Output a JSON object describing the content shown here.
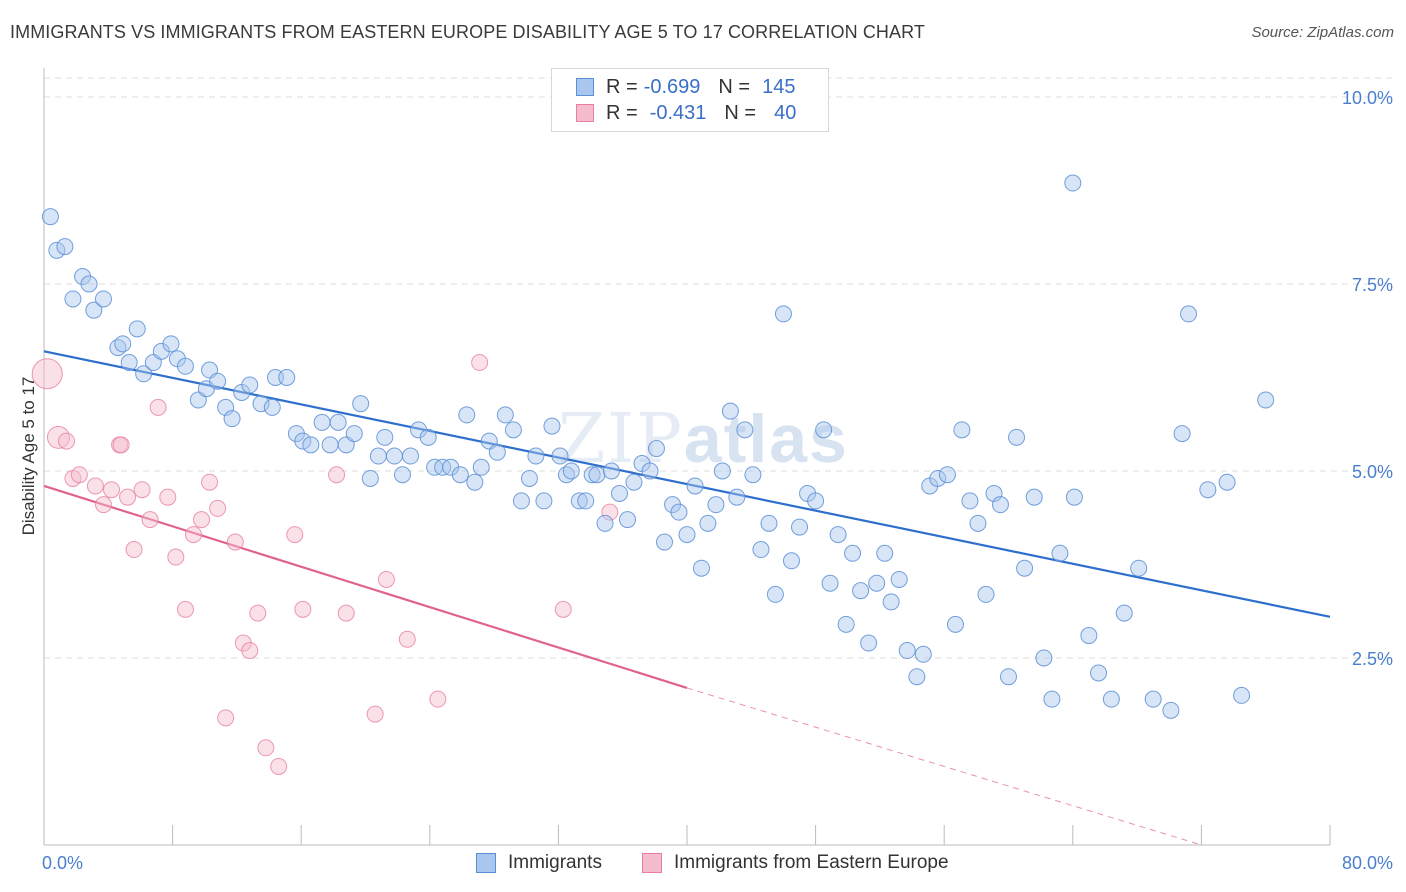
{
  "title": "IMMIGRANTS VS IMMIGRANTS FROM EASTERN EUROPE DISABILITY AGE 5 TO 17 CORRELATION CHART",
  "source": "Source: ZipAtlas.com",
  "watermark": {
    "part1": "ZIP",
    "part2": "atlas"
  },
  "colors": {
    "blue": "#5b8fd6",
    "blue_fill": "#a9c6ee",
    "blue_line": "#2f6fcc",
    "pink": "#e87fa0",
    "pink_fill": "#f5bccd",
    "pink_line": "#e0638e",
    "axis_text": "#4a7fcf",
    "grid": "#dddddd"
  },
  "legend_top": {
    "rows": [
      {
        "r_label": "R =",
        "r_value": "-0.699",
        "n_label": "N =",
        "n_value": "145"
      },
      {
        "r_label": "R =",
        "r_value": "-0.431",
        "n_label": "N =",
        "n_value": "40"
      }
    ]
  },
  "legend_bottom": {
    "series1": "Immigrants",
    "series2": "Immigrants from Eastern Europe"
  },
  "chart_data": {
    "type": "scatter",
    "xlabel": "",
    "ylabel": "Disability Age 5 to 17",
    "xlim": [
      0,
      80
    ],
    "ylim": [
      0,
      10.5
    ],
    "x_tick_labels": [
      "0.0%",
      "80.0%"
    ],
    "y_ticks": [
      2.5,
      5.0,
      7.5,
      10.0
    ],
    "y_tick_labels": [
      "2.5%",
      "5.0%",
      "7.5%",
      "10.0%"
    ],
    "grid": true,
    "series": [
      {
        "name": "Immigrants",
        "trend": {
          "x": [
            0,
            80
          ],
          "y": [
            6.6,
            3.05
          ]
        },
        "points": [
          [
            0.4,
            8.4
          ],
          [
            0.8,
            7.95
          ],
          [
            1.3,
            8.0
          ],
          [
            2.4,
            7.6
          ],
          [
            2.8,
            7.5
          ],
          [
            1.8,
            7.3
          ],
          [
            3.1,
            7.15
          ],
          [
            3.7,
            7.3
          ],
          [
            4.6,
            6.65
          ],
          [
            4.9,
            6.7
          ],
          [
            5.8,
            6.9
          ],
          [
            5.3,
            6.45
          ],
          [
            6.2,
            6.3
          ],
          [
            6.8,
            6.45
          ],
          [
            7.3,
            6.6
          ],
          [
            7.9,
            6.7
          ],
          [
            8.3,
            6.5
          ],
          [
            8.8,
            6.4
          ],
          [
            9.6,
            5.95
          ],
          [
            10.1,
            6.1
          ],
          [
            10.3,
            6.35
          ],
          [
            10.8,
            6.2
          ],
          [
            11.3,
            5.85
          ],
          [
            11.7,
            5.7
          ],
          [
            12.3,
            6.05
          ],
          [
            12.8,
            6.15
          ],
          [
            13.5,
            5.9
          ],
          [
            14.2,
            5.85
          ],
          [
            14.4,
            6.25
          ],
          [
            15.1,
            6.25
          ],
          [
            15.7,
            5.5
          ],
          [
            16.1,
            5.4
          ],
          [
            16.6,
            5.35
          ],
          [
            17.3,
            5.65
          ],
          [
            17.8,
            5.35
          ],
          [
            18.3,
            5.65
          ],
          [
            18.8,
            5.35
          ],
          [
            19.3,
            5.5
          ],
          [
            19.7,
            5.9
          ],
          [
            20.3,
            4.9
          ],
          [
            20.8,
            5.2
          ],
          [
            21.2,
            5.45
          ],
          [
            21.8,
            5.2
          ],
          [
            22.3,
            4.95
          ],
          [
            22.8,
            5.2
          ],
          [
            23.3,
            5.55
          ],
          [
            23.9,
            5.45
          ],
          [
            24.3,
            5.05
          ],
          [
            24.8,
            5.05
          ],
          [
            25.3,
            5.05
          ],
          [
            25.9,
            4.95
          ],
          [
            26.3,
            5.75
          ],
          [
            26.8,
            4.85
          ],
          [
            27.2,
            5.05
          ],
          [
            27.7,
            5.4
          ],
          [
            28.2,
            5.25
          ],
          [
            28.7,
            5.75
          ],
          [
            29.2,
            5.55
          ],
          [
            29.7,
            4.6
          ],
          [
            30.2,
            4.9
          ],
          [
            30.6,
            5.2
          ],
          [
            31.1,
            4.6
          ],
          [
            31.6,
            5.6
          ],
          [
            32.1,
            5.2
          ],
          [
            32.5,
            4.95
          ],
          [
            32.8,
            5.0
          ],
          [
            33.3,
            4.6
          ],
          [
            33.7,
            4.6
          ],
          [
            34.1,
            4.95
          ],
          [
            34.4,
            4.95
          ],
          [
            34.9,
            4.3
          ],
          [
            35.3,
            5.0
          ],
          [
            35.8,
            4.7
          ],
          [
            36.3,
            4.35
          ],
          [
            36.7,
            4.85
          ],
          [
            37.2,
            5.1
          ],
          [
            37.7,
            5.0
          ],
          [
            38.1,
            5.3
          ],
          [
            38.6,
            4.05
          ],
          [
            39.1,
            4.55
          ],
          [
            39.5,
            4.45
          ],
          [
            40.0,
            4.15
          ],
          [
            40.5,
            4.8
          ],
          [
            40.9,
            3.7
          ],
          [
            41.3,
            4.3
          ],
          [
            41.8,
            4.55
          ],
          [
            42.2,
            5.0
          ],
          [
            42.7,
            5.8
          ],
          [
            43.1,
            4.65
          ],
          [
            43.6,
            5.55
          ],
          [
            44.1,
            4.95
          ],
          [
            44.6,
            3.95
          ],
          [
            45.1,
            4.3
          ],
          [
            45.5,
            3.35
          ],
          [
            46.0,
            7.1
          ],
          [
            46.5,
            3.8
          ],
          [
            47.0,
            4.25
          ],
          [
            47.5,
            4.7
          ],
          [
            48.0,
            4.6
          ],
          [
            48.5,
            5.55
          ],
          [
            48.9,
            3.5
          ],
          [
            49.4,
            4.15
          ],
          [
            49.9,
            2.95
          ],
          [
            50.3,
            3.9
          ],
          [
            50.8,
            3.4
          ],
          [
            51.3,
            2.7
          ],
          [
            51.8,
            3.5
          ],
          [
            52.3,
            3.9
          ],
          [
            52.7,
            3.25
          ],
          [
            53.2,
            3.55
          ],
          [
            53.7,
            2.6
          ],
          [
            54.3,
            2.25
          ],
          [
            54.7,
            2.55
          ],
          [
            55.1,
            4.8
          ],
          [
            55.6,
            4.9
          ],
          [
            56.2,
            4.95
          ],
          [
            56.7,
            2.95
          ],
          [
            57.1,
            5.55
          ],
          [
            57.6,
            4.6
          ],
          [
            58.1,
            4.3
          ],
          [
            58.6,
            3.35
          ],
          [
            59.1,
            4.7
          ],
          [
            59.5,
            4.55
          ],
          [
            60.0,
            2.25
          ],
          [
            60.5,
            5.45
          ],
          [
            61.0,
            3.7
          ],
          [
            61.6,
            4.65
          ],
          [
            62.2,
            2.5
          ],
          [
            62.7,
            1.95
          ],
          [
            63.2,
            3.9
          ],
          [
            64.1,
            4.65
          ],
          [
            65.0,
            2.8
          ],
          [
            65.6,
            2.3
          ],
          [
            66.4,
            1.95
          ],
          [
            67.2,
            3.1
          ],
          [
            68.1,
            3.7
          ],
          [
            69.0,
            1.95
          ],
          [
            70.1,
            1.8
          ],
          [
            70.8,
            5.5
          ],
          [
            72.4,
            4.75
          ],
          [
            73.6,
            4.85
          ],
          [
            76.0,
            5.95
          ],
          [
            71.2,
            7.1
          ],
          [
            64.0,
            8.85
          ],
          [
            74.5,
            2.0
          ]
        ]
      },
      {
        "name": "Immigrants from Eastern Europe",
        "trend": {
          "x": [
            0,
            40
          ],
          "y": [
            4.8,
            2.1
          ]
        },
        "trend_dashed": {
          "x": [
            40,
            72
          ],
          "y": [
            2.1,
            0.0
          ]
        },
        "points": [
          [
            0.2,
            6.3
          ],
          [
            0.9,
            5.45
          ],
          [
            1.4,
            5.4
          ],
          [
            1.8,
            4.9
          ],
          [
            2.2,
            4.95
          ],
          [
            3.2,
            4.8
          ],
          [
            3.7,
            4.55
          ],
          [
            4.2,
            4.75
          ],
          [
            4.7,
            5.35
          ],
          [
            5.2,
            4.65
          ],
          [
            5.6,
            3.95
          ],
          [
            6.1,
            4.75
          ],
          [
            6.6,
            4.35
          ],
          [
            7.1,
            5.85
          ],
          [
            7.7,
            4.65
          ],
          [
            8.2,
            3.85
          ],
          [
            8.8,
            3.15
          ],
          [
            9.3,
            4.15
          ],
          [
            9.8,
            4.35
          ],
          [
            10.3,
            4.85
          ],
          [
            10.8,
            4.5
          ],
          [
            11.3,
            1.7
          ],
          [
            11.9,
            4.05
          ],
          [
            12.4,
            2.7
          ],
          [
            12.8,
            2.6
          ],
          [
            13.3,
            3.1
          ],
          [
            13.8,
            1.3
          ],
          [
            14.6,
            1.05
          ],
          [
            15.6,
            4.15
          ],
          [
            16.1,
            3.15
          ],
          [
            18.2,
            4.95
          ],
          [
            18.8,
            3.1
          ],
          [
            20.6,
            1.75
          ],
          [
            21.3,
            3.55
          ],
          [
            22.6,
            2.75
          ],
          [
            24.5,
            1.95
          ],
          [
            27.1,
            6.45
          ],
          [
            32.3,
            3.15
          ],
          [
            35.2,
            4.45
          ],
          [
            4.8,
            5.35
          ]
        ]
      }
    ]
  }
}
